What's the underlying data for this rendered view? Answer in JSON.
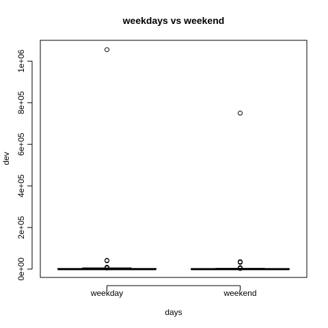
{
  "chart_data": {
    "type": "box",
    "title": "weekdays vs weekend",
    "xlabel": "days",
    "ylabel": "dev",
    "ylim": [
      -40000,
      1100000
    ],
    "y_ticks": [
      0,
      200000,
      400000,
      600000,
      800000,
      1000000
    ],
    "y_tick_labels": [
      "0e+00",
      "2e+05",
      "4e+05",
      "6e+05",
      "8e+05",
      "1e+06"
    ],
    "categories": [
      "weekday",
      "weekend"
    ],
    "boxes": [
      {
        "name": "weekday",
        "q1": 0,
        "median": 0,
        "q3": 3000,
        "whisker_low": 0,
        "whisker_high": 6000,
        "outliers": [
          1055000,
          42000,
          40000,
          9000,
          7000,
          5000
        ]
      },
      {
        "name": "weekend",
        "q1": 0,
        "median": 0,
        "q3": 2000,
        "whisker_low": 0,
        "whisker_high": 4000,
        "outliers": [
          750000,
          36000,
          32000,
          7000,
          5000,
          3000
        ]
      }
    ],
    "grid": false,
    "legend": "none"
  }
}
